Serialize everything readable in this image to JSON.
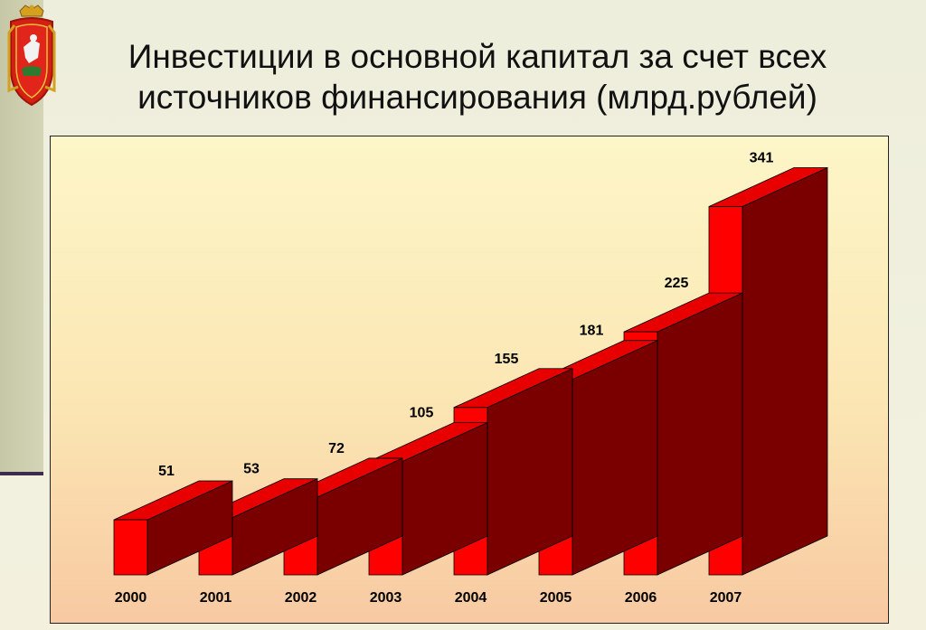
{
  "title": "Инвестиции в основной капитал за счет всех источников финансирования (млрд.рублей)",
  "emblem_icon": "coat-of-arms-icon",
  "colors": {
    "bar_front": "#ff0000",
    "bar_top": "#e80000",
    "bar_side": "#7a0000"
  },
  "chart_data": {
    "type": "bar",
    "title": "Инвестиции в основной капитал за счет всех источников финансирования (млрд.рублей)",
    "categories": [
      "2000",
      "2001",
      "2002",
      "2003",
      "2004",
      "2005",
      "2006",
      "2007"
    ],
    "values": [
      51,
      53,
      72,
      105,
      155,
      181,
      225,
      341
    ],
    "data_labels": [
      "51",
      "53",
      "72",
      "105",
      "155",
      "181",
      "225",
      "341"
    ],
    "grid": false,
    "legend": "none",
    "style": "3d-bars"
  }
}
